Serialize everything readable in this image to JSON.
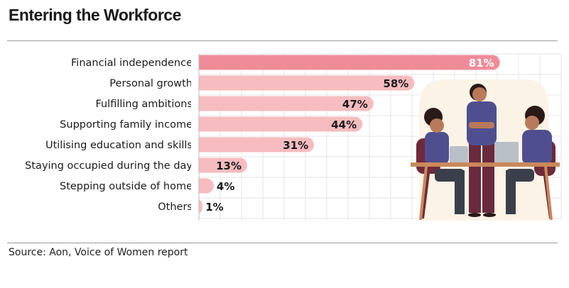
{
  "title": "Entering the Workforce",
  "source": "Source: Aon, Voice of Women report",
  "chart_data": {
    "type": "bar",
    "orientation": "horizontal",
    "categories": [
      "Financial independence",
      "Personal growth",
      "Fulfilling ambitions",
      "Supporting family income",
      "Utilising education and skills",
      "Staying occupied during the day",
      "Stepping outside of home",
      "Others"
    ],
    "values": [
      81,
      58,
      47,
      44,
      31,
      13,
      4,
      1
    ],
    "value_labels": [
      "81%",
      "58%",
      "47%",
      "44%",
      "31%",
      "13%",
      "4%",
      "1%"
    ],
    "xlim": [
      0,
      100
    ],
    "grid": true,
    "colors": {
      "highlight_bar": "#f08c99",
      "bar": "#f6bcbf",
      "highlight_label": "#ffffff",
      "label": "#1a1a1a",
      "grid": "#e6e6e6"
    }
  },
  "illustration": {
    "name": "three-women-at-desk-illustration",
    "colors": {
      "backdrop": "#fbf3e6",
      "shirt": "#4f4f8f",
      "skin": "#b87a5a",
      "hair": "#2a1a18",
      "chair": "#6f2a3a",
      "desk": "#c9895b",
      "laptop": "#b9bfc6",
      "pants_dark": "#3a3f4a",
      "pants_plum": "#6a2a3e"
    }
  }
}
